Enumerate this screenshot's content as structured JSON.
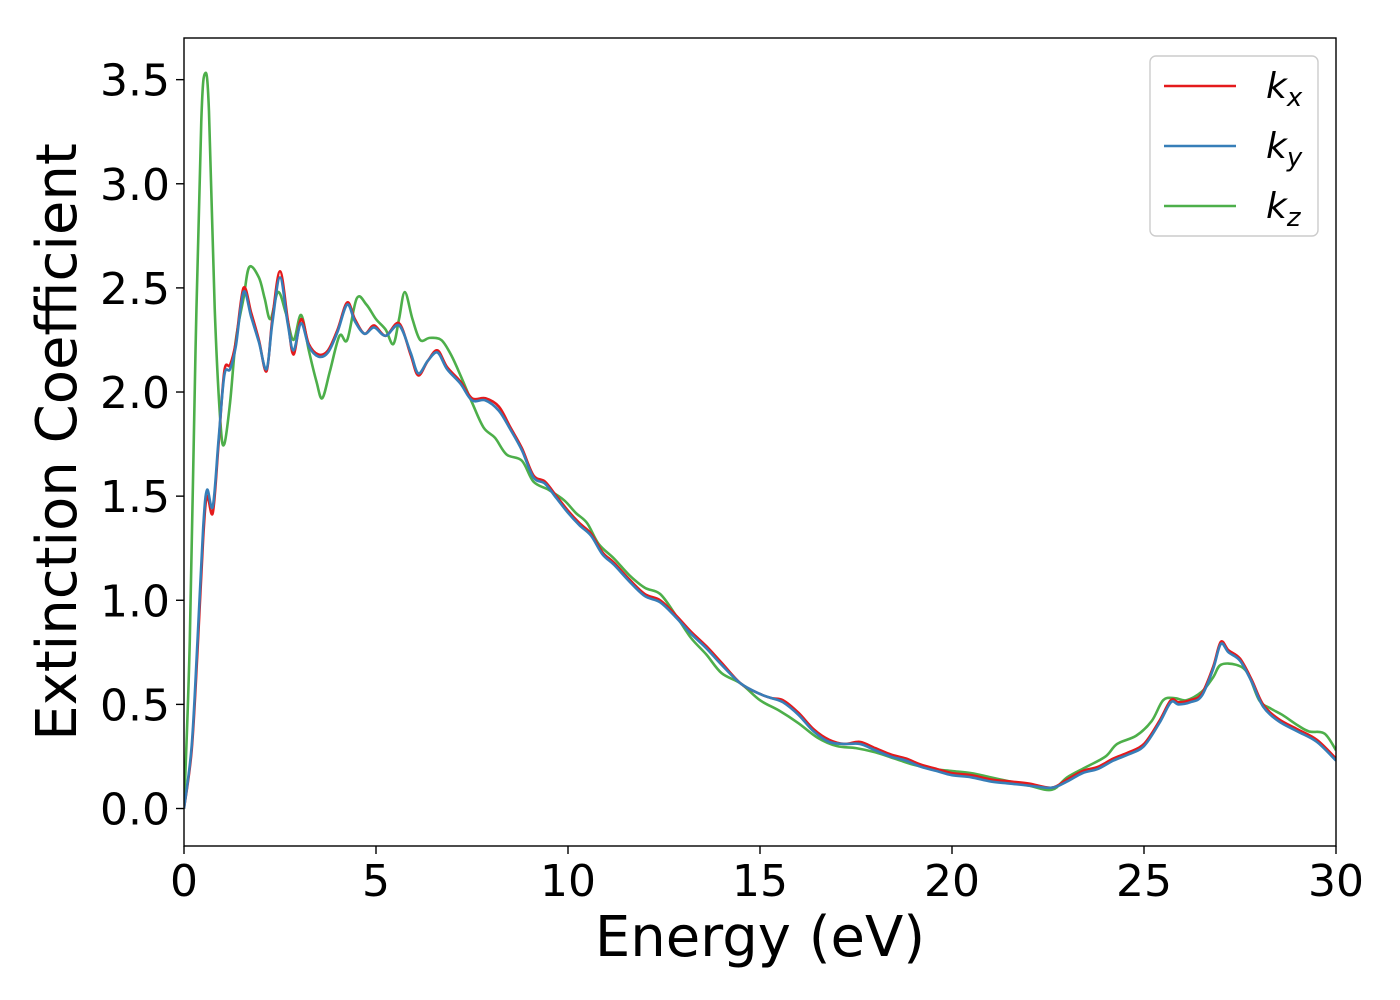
{
  "chart_data": {
    "type": "line",
    "title": "",
    "xlabel": "Energy (eV)",
    "ylabel": "Extinction Coefficient",
    "xlim": [
      0,
      30
    ],
    "ylim": [
      -0.18,
      3.7
    ],
    "xticks": [
      0,
      5,
      10,
      15,
      20,
      25,
      30
    ],
    "xtick_labels": [
      "0",
      "5",
      "10",
      "15",
      "20",
      "25",
      "30"
    ],
    "yticks": [
      0.0,
      0.5,
      1.0,
      1.5,
      2.0,
      2.5,
      3.0,
      3.5
    ],
    "ytick_labels": [
      "0.0",
      "0.5",
      "1.0",
      "1.5",
      "2.0",
      "2.5",
      "3.0",
      "3.5"
    ],
    "grid": false,
    "legend": "top-right",
    "series": [
      {
        "name": "k",
        "subscript": "x",
        "color": "#e41a1c",
        "points": [
          [
            0,
            0
          ],
          [
            0.2,
            0.28
          ],
          [
            0.35,
            0.75
          ],
          [
            0.5,
            1.3
          ],
          [
            0.6,
            1.5
          ],
          [
            0.75,
            1.42
          ],
          [
            0.9,
            1.75
          ],
          [
            1.05,
            2.1
          ],
          [
            1.2,
            2.13
          ],
          [
            1.35,
            2.24
          ],
          [
            1.55,
            2.5
          ],
          [
            1.75,
            2.38
          ],
          [
            1.95,
            2.25
          ],
          [
            2.15,
            2.1
          ],
          [
            2.3,
            2.35
          ],
          [
            2.5,
            2.58
          ],
          [
            2.7,
            2.35
          ],
          [
            2.85,
            2.18
          ],
          [
            3.05,
            2.35
          ],
          [
            3.25,
            2.23
          ],
          [
            3.5,
            2.18
          ],
          [
            3.75,
            2.2
          ],
          [
            4.0,
            2.3
          ],
          [
            4.25,
            2.43
          ],
          [
            4.45,
            2.35
          ],
          [
            4.7,
            2.28
          ],
          [
            4.95,
            2.32
          ],
          [
            5.25,
            2.27
          ],
          [
            5.6,
            2.33
          ],
          [
            5.9,
            2.18
          ],
          [
            6.1,
            2.08
          ],
          [
            6.35,
            2.15
          ],
          [
            6.6,
            2.2
          ],
          [
            6.85,
            2.12
          ],
          [
            7.2,
            2.05
          ],
          [
            7.5,
            1.97
          ],
          [
            7.85,
            1.97
          ],
          [
            8.2,
            1.93
          ],
          [
            8.5,
            1.83
          ],
          [
            8.8,
            1.73
          ],
          [
            9.1,
            1.6
          ],
          [
            9.4,
            1.57
          ],
          [
            9.7,
            1.5
          ],
          [
            10.0,
            1.43
          ],
          [
            10.3,
            1.37
          ],
          [
            10.6,
            1.32
          ],
          [
            10.9,
            1.23
          ],
          [
            11.2,
            1.18
          ],
          [
            11.6,
            1.1
          ],
          [
            12.0,
            1.03
          ],
          [
            12.4,
            1.0
          ],
          [
            12.8,
            0.93
          ],
          [
            13.2,
            0.85
          ],
          [
            13.6,
            0.78
          ],
          [
            14.0,
            0.7
          ],
          [
            14.5,
            0.6
          ],
          [
            15.0,
            0.55
          ],
          [
            15.3,
            0.53
          ],
          [
            15.6,
            0.52
          ],
          [
            16.0,
            0.46
          ],
          [
            16.4,
            0.38
          ],
          [
            16.8,
            0.33
          ],
          [
            17.2,
            0.31
          ],
          [
            17.6,
            0.32
          ],
          [
            18.0,
            0.29
          ],
          [
            18.4,
            0.26
          ],
          [
            18.8,
            0.24
          ],
          [
            19.2,
            0.21
          ],
          [
            19.6,
            0.19
          ],
          [
            20.0,
            0.17
          ],
          [
            20.5,
            0.16
          ],
          [
            21.0,
            0.14
          ],
          [
            21.5,
            0.13
          ],
          [
            22.0,
            0.12
          ],
          [
            22.6,
            0.1
          ],
          [
            23.0,
            0.14
          ],
          [
            23.4,
            0.18
          ],
          [
            23.8,
            0.2
          ],
          [
            24.2,
            0.24
          ],
          [
            24.6,
            0.27
          ],
          [
            25.0,
            0.31
          ],
          [
            25.4,
            0.42
          ],
          [
            25.7,
            0.52
          ],
          [
            25.9,
            0.51
          ],
          [
            26.2,
            0.52
          ],
          [
            26.5,
            0.55
          ],
          [
            26.8,
            0.68
          ],
          [
            27.0,
            0.8
          ],
          [
            27.2,
            0.76
          ],
          [
            27.5,
            0.72
          ],
          [
            27.8,
            0.62
          ],
          [
            28.1,
            0.5
          ],
          [
            28.5,
            0.43
          ],
          [
            29.0,
            0.38
          ],
          [
            29.5,
            0.33
          ],
          [
            30.0,
            0.24
          ]
        ]
      },
      {
        "name": "k",
        "subscript": "y",
        "color": "#377eb8",
        "points": [
          [
            0,
            0
          ],
          [
            0.2,
            0.3
          ],
          [
            0.35,
            0.8
          ],
          [
            0.5,
            1.35
          ],
          [
            0.6,
            1.53
          ],
          [
            0.75,
            1.45
          ],
          [
            0.9,
            1.77
          ],
          [
            1.05,
            2.08
          ],
          [
            1.2,
            2.11
          ],
          [
            1.35,
            2.22
          ],
          [
            1.55,
            2.48
          ],
          [
            1.75,
            2.36
          ],
          [
            1.95,
            2.24
          ],
          [
            2.15,
            2.11
          ],
          [
            2.3,
            2.33
          ],
          [
            2.5,
            2.55
          ],
          [
            2.7,
            2.33
          ],
          [
            2.85,
            2.2
          ],
          [
            3.05,
            2.33
          ],
          [
            3.25,
            2.22
          ],
          [
            3.5,
            2.17
          ],
          [
            3.75,
            2.19
          ],
          [
            4.0,
            2.29
          ],
          [
            4.25,
            2.42
          ],
          [
            4.45,
            2.34
          ],
          [
            4.7,
            2.28
          ],
          [
            4.95,
            2.31
          ],
          [
            5.25,
            2.27
          ],
          [
            5.6,
            2.32
          ],
          [
            5.9,
            2.19
          ],
          [
            6.1,
            2.09
          ],
          [
            6.35,
            2.15
          ],
          [
            6.6,
            2.19
          ],
          [
            6.85,
            2.11
          ],
          [
            7.2,
            2.04
          ],
          [
            7.5,
            1.96
          ],
          [
            7.85,
            1.96
          ],
          [
            8.2,
            1.91
          ],
          [
            8.5,
            1.82
          ],
          [
            8.8,
            1.72
          ],
          [
            9.1,
            1.59
          ],
          [
            9.4,
            1.56
          ],
          [
            9.7,
            1.49
          ],
          [
            10.0,
            1.42
          ],
          [
            10.3,
            1.36
          ],
          [
            10.6,
            1.31
          ],
          [
            10.9,
            1.22
          ],
          [
            11.2,
            1.17
          ],
          [
            11.6,
            1.09
          ],
          [
            12.0,
            1.02
          ],
          [
            12.4,
            0.99
          ],
          [
            12.8,
            0.92
          ],
          [
            13.2,
            0.84
          ],
          [
            13.6,
            0.77
          ],
          [
            14.0,
            0.69
          ],
          [
            14.5,
            0.6
          ],
          [
            15.0,
            0.55
          ],
          [
            15.3,
            0.53
          ],
          [
            15.6,
            0.51
          ],
          [
            16.0,
            0.45
          ],
          [
            16.4,
            0.37
          ],
          [
            16.8,
            0.32
          ],
          [
            17.2,
            0.31
          ],
          [
            17.6,
            0.31
          ],
          [
            18.0,
            0.28
          ],
          [
            18.4,
            0.25
          ],
          [
            18.8,
            0.23
          ],
          [
            19.2,
            0.2
          ],
          [
            19.6,
            0.18
          ],
          [
            20.0,
            0.16
          ],
          [
            20.5,
            0.15
          ],
          [
            21.0,
            0.13
          ],
          [
            21.5,
            0.12
          ],
          [
            22.0,
            0.11
          ],
          [
            22.6,
            0.1
          ],
          [
            23.0,
            0.13
          ],
          [
            23.4,
            0.17
          ],
          [
            23.8,
            0.19
          ],
          [
            24.2,
            0.23
          ],
          [
            24.6,
            0.26
          ],
          [
            25.0,
            0.3
          ],
          [
            25.4,
            0.41
          ],
          [
            25.7,
            0.51
          ],
          [
            25.9,
            0.5
          ],
          [
            26.2,
            0.51
          ],
          [
            26.5,
            0.54
          ],
          [
            26.8,
            0.67
          ],
          [
            27.0,
            0.79
          ],
          [
            27.2,
            0.75
          ],
          [
            27.5,
            0.71
          ],
          [
            27.8,
            0.61
          ],
          [
            28.1,
            0.49
          ],
          [
            28.5,
            0.42
          ],
          [
            29.0,
            0.37
          ],
          [
            29.5,
            0.32
          ],
          [
            30.0,
            0.23
          ]
        ]
      },
      {
        "name": "k",
        "subscript": "z",
        "color": "#4daf4a",
        "points": [
          [
            0,
            0
          ],
          [
            0.15,
            0.8
          ],
          [
            0.3,
            2.2
          ],
          [
            0.45,
            3.3
          ],
          [
            0.55,
            3.53
          ],
          [
            0.65,
            3.35
          ],
          [
            0.8,
            2.4
          ],
          [
            0.95,
            1.85
          ],
          [
            1.05,
            1.75
          ],
          [
            1.2,
            1.95
          ],
          [
            1.35,
            2.25
          ],
          [
            1.55,
            2.45
          ],
          [
            1.7,
            2.6
          ],
          [
            1.95,
            2.55
          ],
          [
            2.1,
            2.45
          ],
          [
            2.25,
            2.35
          ],
          [
            2.45,
            2.48
          ],
          [
            2.65,
            2.38
          ],
          [
            2.85,
            2.25
          ],
          [
            3.05,
            2.37
          ],
          [
            3.25,
            2.2
          ],
          [
            3.45,
            2.05
          ],
          [
            3.6,
            1.97
          ],
          [
            3.8,
            2.1
          ],
          [
            4.05,
            2.27
          ],
          [
            4.25,
            2.25
          ],
          [
            4.5,
            2.45
          ],
          [
            4.75,
            2.42
          ],
          [
            5.0,
            2.35
          ],
          [
            5.25,
            2.3
          ],
          [
            5.45,
            2.23
          ],
          [
            5.6,
            2.35
          ],
          [
            5.75,
            2.48
          ],
          [
            5.95,
            2.35
          ],
          [
            6.15,
            2.25
          ],
          [
            6.4,
            2.26
          ],
          [
            6.7,
            2.25
          ],
          [
            6.95,
            2.18
          ],
          [
            7.2,
            2.08
          ],
          [
            7.5,
            1.95
          ],
          [
            7.8,
            1.83
          ],
          [
            8.1,
            1.78
          ],
          [
            8.4,
            1.7
          ],
          [
            8.8,
            1.67
          ],
          [
            9.1,
            1.57
          ],
          [
            9.5,
            1.53
          ],
          [
            9.9,
            1.48
          ],
          [
            10.2,
            1.42
          ],
          [
            10.5,
            1.37
          ],
          [
            10.8,
            1.27
          ],
          [
            11.2,
            1.2
          ],
          [
            11.6,
            1.12
          ],
          [
            12.0,
            1.06
          ],
          [
            12.4,
            1.03
          ],
          [
            12.8,
            0.93
          ],
          [
            13.2,
            0.82
          ],
          [
            13.6,
            0.74
          ],
          [
            14.0,
            0.65
          ],
          [
            14.5,
            0.6
          ],
          [
            15.0,
            0.52
          ],
          [
            15.5,
            0.47
          ],
          [
            16.0,
            0.41
          ],
          [
            16.5,
            0.34
          ],
          [
            17.0,
            0.3
          ],
          [
            17.5,
            0.29
          ],
          [
            18.0,
            0.27
          ],
          [
            18.5,
            0.24
          ],
          [
            19.0,
            0.21
          ],
          [
            19.5,
            0.19
          ],
          [
            20.0,
            0.18
          ],
          [
            20.5,
            0.17
          ],
          [
            21.0,
            0.15
          ],
          [
            21.5,
            0.13
          ],
          [
            22.0,
            0.11
          ],
          [
            22.6,
            0.09
          ],
          [
            23.0,
            0.15
          ],
          [
            23.5,
            0.2
          ],
          [
            24.0,
            0.25
          ],
          [
            24.3,
            0.31
          ],
          [
            24.8,
            0.35
          ],
          [
            25.2,
            0.42
          ],
          [
            25.5,
            0.52
          ],
          [
            25.8,
            0.53
          ],
          [
            26.1,
            0.52
          ],
          [
            26.5,
            0.56
          ],
          [
            26.8,
            0.63
          ],
          [
            27.0,
            0.69
          ],
          [
            27.4,
            0.69
          ],
          [
            27.7,
            0.65
          ],
          [
            28.0,
            0.52
          ],
          [
            28.3,
            0.48
          ],
          [
            28.6,
            0.45
          ],
          [
            29.0,
            0.4
          ],
          [
            29.3,
            0.37
          ],
          [
            29.7,
            0.36
          ],
          [
            30.0,
            0.28
          ]
        ]
      }
    ]
  }
}
